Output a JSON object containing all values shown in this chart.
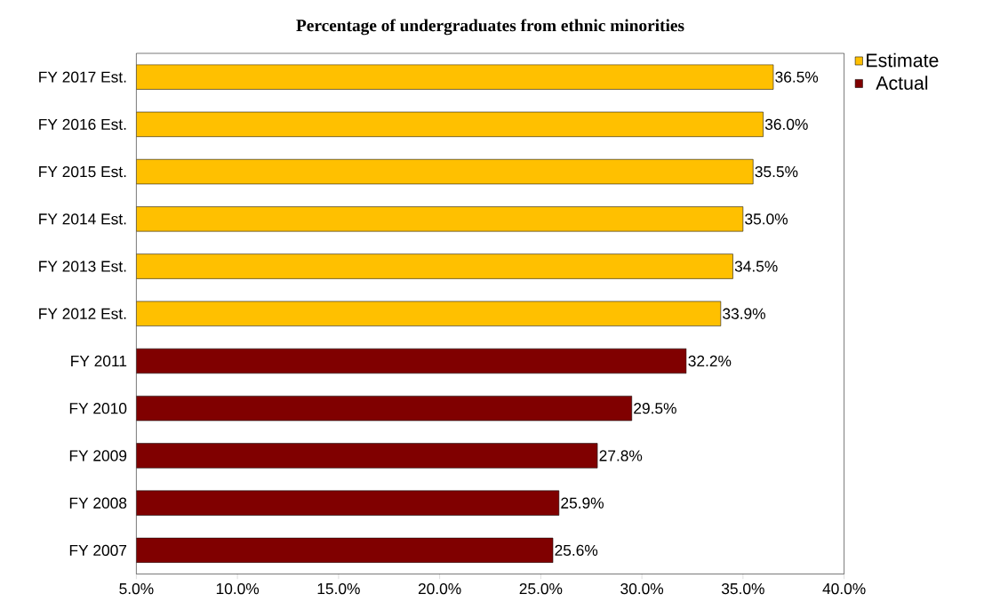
{
  "chart_data": {
    "type": "bar",
    "orientation": "horizontal",
    "title": "Percentage of undergraduates from ethnic minorities",
    "categories": [
      "FY 2017 Est.",
      "FY 2016 Est.",
      "FY 2015 Est.",
      "FY 2014 Est.",
      "FY 2013 Est.",
      "FY 2012 Est.",
      "FY 2011",
      "FY 2010",
      "FY 2009",
      "FY 2008",
      "FY 2007"
    ],
    "series": [
      {
        "name": "Estimate",
        "color": "#ffc000",
        "values": [
          36.5,
          36.0,
          35.5,
          35.0,
          34.5,
          33.9,
          null,
          null,
          null,
          null,
          null
        ],
        "value_labels": [
          "36.5%",
          "36.0%",
          "35.5%",
          "35.0%",
          "34.5%",
          "33.9%",
          null,
          null,
          null,
          null,
          null
        ]
      },
      {
        "name": "Actual",
        "color": "#800000",
        "values": [
          null,
          null,
          null,
          null,
          null,
          null,
          32.2,
          29.5,
          27.8,
          25.9,
          25.6
        ],
        "value_labels": [
          null,
          null,
          null,
          null,
          null,
          null,
          "32.2%",
          "29.5%",
          "27.8%",
          "25.9%",
          "25.6%"
        ]
      }
    ],
    "xlim": [
      5,
      40
    ],
    "xticks": [
      {
        "value": 5,
        "label": "5.0%"
      },
      {
        "value": 10,
        "label": "10.0%"
      },
      {
        "value": 15,
        "label": "15.0%"
      },
      {
        "value": 20,
        "label": "20.0%"
      },
      {
        "value": 25,
        "label": "25.0%"
      },
      {
        "value": 30,
        "label": "30.0%"
      },
      {
        "value": 35,
        "label": "35.0%"
      },
      {
        "value": 40,
        "label": "40.0%"
      }
    ],
    "legend": "top right"
  }
}
